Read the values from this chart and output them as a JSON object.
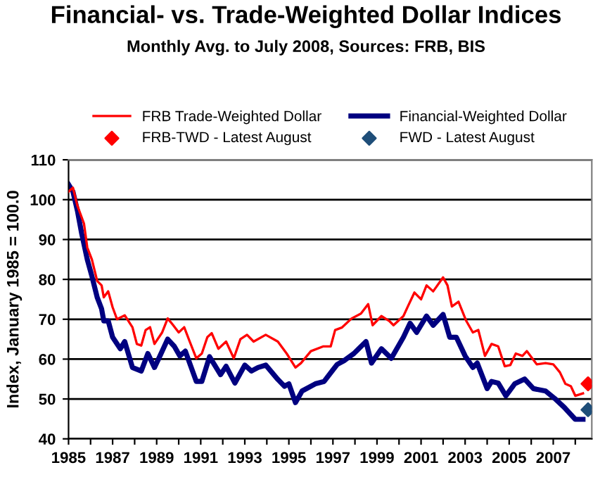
{
  "chart_data": {
    "type": "line",
    "title": "Financial- vs. Trade-Weighted Dollar Indices",
    "subtitle": "Monthly Avg. to July 2008, Sources: FRB, BIS",
    "ylabel": "Index, January 1985 = 100.0",
    "xlim": [
      1985,
      2008.75
    ],
    "ylim": [
      40,
      110
    ],
    "xticks": [
      1985,
      {
        "value": 1986,
        "label": null
      },
      1987,
      {
        "value": 1988,
        "label": null
      },
      1989,
      {
        "value": 1990,
        "label": null
      },
      1991,
      {
        "value": 1992,
        "label": null
      },
      1993,
      {
        "value": 1994,
        "label": null
      },
      1995,
      {
        "value": 1996,
        "label": null
      },
      1997,
      {
        "value": 1998,
        "label": null
      },
      1999,
      {
        "value": 2000,
        "label": null
      },
      2001,
      {
        "value": 2002,
        "label": null
      },
      2003,
      {
        "value": 2004,
        "label": null
      },
      2005,
      {
        "value": 2006,
        "label": null
      },
      2007,
      {
        "value": 2008,
        "label": null
      }
    ],
    "yticks": [
      40,
      50,
      60,
      70,
      80,
      90,
      100,
      110
    ],
    "grid": "y",
    "legend": "top",
    "series": [
      {
        "name": "FRB Trade-Weighted Dollar",
        "color": "#ff0000",
        "marker": "none",
        "x": [
          1985.0,
          1985.2,
          1985.4,
          1985.7,
          1985.85,
          1986.06,
          1986.3,
          1986.5,
          1986.6,
          1986.8,
          1987.0,
          1987.2,
          1987.55,
          1987.9,
          1988.1,
          1988.3,
          1988.5,
          1988.7,
          1988.9,
          1989.25,
          1989.5,
          1989.75,
          1990.0,
          1990.25,
          1990.5,
          1990.8,
          1991.05,
          1991.3,
          1991.5,
          1991.8,
          1992.15,
          1992.5,
          1992.8,
          1993.1,
          1993.4,
          1993.95,
          1994.5,
          1994.9,
          1995.3,
          1995.55,
          1996.0,
          1996.57,
          1996.9,
          1997.1,
          1997.4,
          1997.85,
          1998.27,
          1998.6,
          1998.8,
          1999.2,
          1999.55,
          1999.75,
          2000.2,
          2000.4,
          2000.7,
          2001.0,
          2001.25,
          2001.55,
          2002.0,
          2002.2,
          2002.4,
          2002.7,
          2003.05,
          2003.35,
          2003.6,
          2003.9,
          2004.2,
          2004.5,
          2004.8,
          2005.05,
          2005.3,
          2005.6,
          2005.8,
          2006.25,
          2006.65,
          2007.0,
          2007.3,
          2007.55,
          2007.8,
          2008.0,
          2008.35
        ],
        "values": [
          102,
          103,
          98.5,
          94,
          88,
          85,
          79.6,
          78.5,
          75.5,
          77,
          73,
          70,
          71,
          68,
          63.8,
          63.4,
          67.3,
          68,
          63.8,
          66.7,
          70.2,
          68.5,
          66.7,
          68,
          64.4,
          60.2,
          61.4,
          65.5,
          66.5,
          62.6,
          64.4,
          60.2,
          65,
          66.1,
          64.4,
          66.1,
          64.4,
          61.4,
          57.9,
          59,
          62,
          63.2,
          63.2,
          67.3,
          67.9,
          70.2,
          71.4,
          73.8,
          68.5,
          70.8,
          69.6,
          68.5,
          70.8,
          73.2,
          76.7,
          75,
          78.5,
          77,
          80.5,
          78.5,
          73.2,
          74.4,
          69.6,
          66.7,
          67.3,
          60.8,
          63.8,
          63.2,
          58.2,
          58.5,
          61.4,
          60.8,
          62,
          58.7,
          59,
          58.7,
          56.7,
          53.8,
          53.2,
          50.8,
          51.4
        ]
      },
      {
        "name": "Financial-Weighted Dollar",
        "color": "#000080",
        "marker": "none",
        "x": [
          1985.0,
          1985.2,
          1985.4,
          1985.6,
          1985.85,
          1986.06,
          1986.3,
          1986.5,
          1986.6,
          1986.8,
          1987.0,
          1987.35,
          1987.55,
          1987.9,
          1988.3,
          1988.6,
          1988.9,
          1989.15,
          1989.5,
          1989.8,
          1990.05,
          1990.3,
          1990.8,
          1991.05,
          1991.4,
          1991.7,
          1991.9,
          1992.15,
          1992.55,
          1993.0,
          1993.3,
          1993.6,
          1993.95,
          1994.5,
          1994.8,
          1995.0,
          1995.3,
          1995.6,
          1996.2,
          1996.6,
          1997.0,
          1997.2,
          1997.5,
          1997.95,
          1998.5,
          1998.75,
          1999.2,
          1999.65,
          2000.2,
          2000.5,
          2000.8,
          2001.25,
          2001.55,
          2002.0,
          2002.3,
          2002.6,
          2003.0,
          2003.35,
          2003.55,
          2004.0,
          2004.2,
          2004.5,
          2004.85,
          2005.25,
          2005.7,
          2006.1,
          2006.65,
          2007.05,
          2007.5,
          2007.8,
          2008.0,
          2008.35
        ],
        "values": [
          103.8,
          102,
          97.3,
          91.4,
          85,
          80.8,
          75.5,
          72.6,
          69.6,
          69.6,
          65.5,
          62.6,
          64.4,
          57.9,
          57,
          61.4,
          57.9,
          60.8,
          65,
          63.2,
          60.8,
          62,
          54.4,
          54.4,
          60.6,
          57.9,
          56.1,
          58.2,
          54,
          58.5,
          57,
          57.9,
          58.5,
          54.9,
          53.2,
          53.8,
          49.1,
          52,
          53.8,
          54.4,
          57.3,
          58.7,
          59.6,
          61.4,
          64.4,
          59,
          62.6,
          60.2,
          65.5,
          69,
          66.7,
          70.8,
          68.5,
          71.2,
          65.5,
          65.5,
          60.8,
          57.9,
          59,
          52.6,
          54.4,
          54,
          50.8,
          53.8,
          55,
          52.6,
          52,
          50.2,
          47.9,
          46.1,
          44.9,
          44.9
        ]
      },
      {
        "name": "FRB-TWD - Latest August",
        "type": "scatter",
        "color": "#ff0000",
        "marker": "diamond",
        "x": [
          2008.58
        ],
        "values": [
          53.8
        ]
      },
      {
        "name": "FWD - Latest August",
        "type": "scatter",
        "color": "#1f4e79",
        "marker": "diamond",
        "x": [
          2008.58
        ],
        "values": [
          47.3
        ]
      }
    ]
  }
}
